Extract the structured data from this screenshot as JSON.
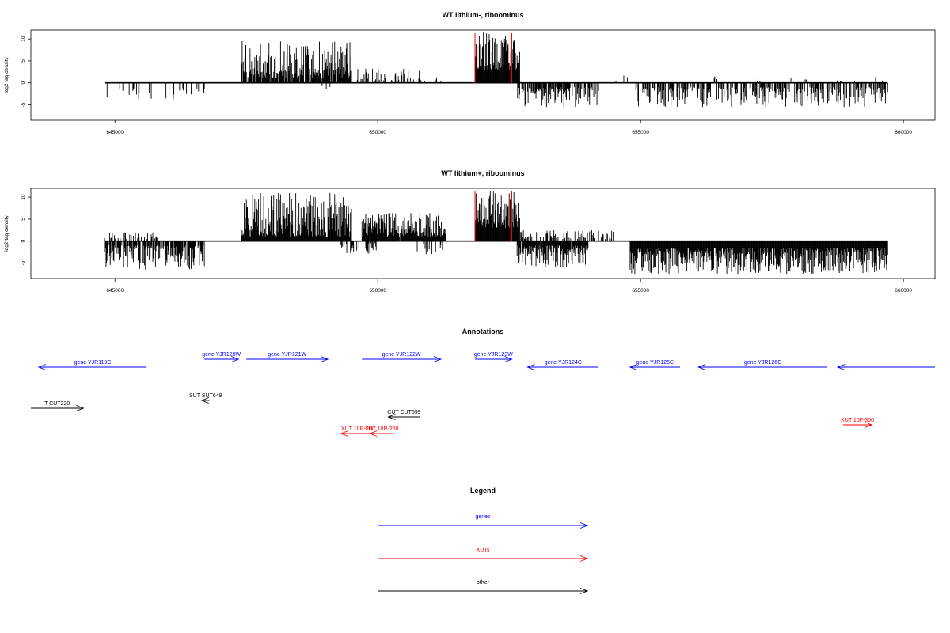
{
  "colors": {
    "genes": "#0000ff",
    "xuts": "#ff0000",
    "other": "#000000",
    "highlight": "#ff0000",
    "bar": "#000000"
  },
  "chart_data": [
    {
      "type": "bar",
      "title": "WT lithium-, riboominus",
      "ylabel": "log2 tag density",
      "xlim": [
        643400,
        660600
      ],
      "ylim": [
        -8.5,
        12
      ],
      "xticks": [
        645000,
        650000,
        655000,
        660000
      ],
      "xtick_labels": [
        "645000",
        "650000",
        "655000",
        "660000"
      ],
      "yticks": [
        -5,
        0,
        5,
        10
      ],
      "ytick_labels": [
        "-5",
        "0",
        "5",
        "10"
      ],
      "highlight_lines_x": [
        651850,
        652550
      ],
      "regions": [
        {
          "start": 644800,
          "end": 646700,
          "sign": -1,
          "min": 1,
          "max": 4.5,
          "density": 0.12,
          "seed": 3
        },
        {
          "start": 647400,
          "end": 649500,
          "sign": 1,
          "min": 1,
          "max": 9.5,
          "density": 0.9,
          "seed": 7
        },
        {
          "start": 648700,
          "end": 649300,
          "sign": -1,
          "min": 0.5,
          "max": 2,
          "density": 0.05,
          "seed": 11
        },
        {
          "start": 649600,
          "end": 650900,
          "sign": 1,
          "min": 0.5,
          "max": 3.5,
          "density": 0.35,
          "seed": 13
        },
        {
          "start": 651000,
          "end": 651200,
          "sign": 1,
          "min": 0.5,
          "max": 2,
          "density": 0.2,
          "seed": 17
        },
        {
          "start": 651850,
          "end": 652700,
          "sign": 1,
          "min": 3,
          "max": 11.5,
          "density": 1,
          "seed": 19
        },
        {
          "start": 652650,
          "end": 654200,
          "sign": -1,
          "min": 1,
          "max": 5.5,
          "density": 0.7,
          "seed": 23
        },
        {
          "start": 654250,
          "end": 654800,
          "sign": 1,
          "min": 0.5,
          "max": 3,
          "density": 0.05,
          "seed": 29
        },
        {
          "start": 654900,
          "end": 659700,
          "sign": -1,
          "min": 1,
          "max": 5.5,
          "density": 0.55,
          "seed": 31
        },
        {
          "start": 656400,
          "end": 659700,
          "sign": 1,
          "min": 0.3,
          "max": 1.5,
          "density": 0.05,
          "seed": 37
        }
      ]
    },
    {
      "type": "bar",
      "title": "WT lithium+, riboominus",
      "ylabel": "log2 tag density",
      "xlim": [
        643400,
        660600
      ],
      "ylim": [
        -8.5,
        12
      ],
      "xticks": [
        645000,
        650000,
        655000,
        660000
      ],
      "xtick_labels": [
        "645000",
        "650000",
        "655000",
        "660000"
      ],
      "yticks": [
        -5,
        0,
        5,
        10
      ],
      "ytick_labels": [
        "-5",
        "0",
        "5",
        "10"
      ],
      "highlight_lines_x": [
        651850,
        652550
      ],
      "regions": [
        {
          "start": 644800,
          "end": 646700,
          "sign": -1,
          "min": 1,
          "max": 6.5,
          "density": 0.75,
          "seed": 41
        },
        {
          "start": 644800,
          "end": 645800,
          "sign": 1,
          "min": 0.5,
          "max": 2,
          "density": 0.3,
          "seed": 43
        },
        {
          "start": 647400,
          "end": 649500,
          "sign": 1,
          "min": 1,
          "max": 11,
          "density": 1,
          "seed": 47
        },
        {
          "start": 649300,
          "end": 650000,
          "sign": -1,
          "min": 0.5,
          "max": 3,
          "density": 0.4,
          "seed": 53
        },
        {
          "start": 649700,
          "end": 651300,
          "sign": 1,
          "min": 1,
          "max": 6.5,
          "density": 0.95,
          "seed": 59
        },
        {
          "start": 650700,
          "end": 651300,
          "sign": -1,
          "min": 0.5,
          "max": 3,
          "density": 0.2,
          "seed": 61
        },
        {
          "start": 651850,
          "end": 652700,
          "sign": 1,
          "min": 3,
          "max": 11.5,
          "density": 1,
          "seed": 67
        },
        {
          "start": 652650,
          "end": 654000,
          "sign": -1,
          "min": 1,
          "max": 6,
          "density": 0.95,
          "seed": 71
        },
        {
          "start": 652700,
          "end": 654500,
          "sign": 1,
          "min": 0.5,
          "max": 2.5,
          "density": 0.3,
          "seed": 73
        },
        {
          "start": 654800,
          "end": 659700,
          "sign": -1,
          "min": 1.5,
          "max": 7.5,
          "density": 1,
          "seed": 79
        }
      ]
    }
  ],
  "annotations": {
    "title": "Annotations",
    "features": [
      {
        "label": "gene YJR119C",
        "type": "genes",
        "dir": "left",
        "start": 643550,
        "end": 645600,
        "row": 1
      },
      {
        "label": "gene YJR120W",
        "type": "genes",
        "dir": "right",
        "start": 646700,
        "end": 647350,
        "row": 0
      },
      {
        "label": "gene YJR121W",
        "type": "genes",
        "dir": "right",
        "start": 647500,
        "end": 649050,
        "row": 0
      },
      {
        "label": "gene YJR122W",
        "type": "genes",
        "dir": "right",
        "start": 649700,
        "end": 651200,
        "row": 0
      },
      {
        "label": "gene YJR123W",
        "type": "genes",
        "dir": "right",
        "start": 651850,
        "end": 652550,
        "row": 0
      },
      {
        "label": "gene YJR124C",
        "type": "genes",
        "dir": "left",
        "start": 652850,
        "end": 654200,
        "row": 1
      },
      {
        "label": "gene YJR125C",
        "type": "genes",
        "dir": "left",
        "start": 654800,
        "end": 655750,
        "row": 1
      },
      {
        "label": "gene YJR126C",
        "type": "genes",
        "dir": "left",
        "start": 656100,
        "end": 658550,
        "row": 1
      },
      {
        "label": "",
        "type": "genes",
        "dir": "left",
        "start": 658750,
        "end": 660600,
        "row": 1
      },
      {
        "label": "SUT SUT649",
        "type": "other",
        "dir": "left",
        "start": 646650,
        "end": 646800,
        "row": 2
      },
      {
        "label": "T CUT220",
        "type": "other",
        "dir": "right",
        "start": 643400,
        "end": 644400,
        "row": 3
      },
      {
        "label": "CUT CUT699",
        "type": "other",
        "dir": "left",
        "start": 650200,
        "end": 650800,
        "row": 4
      },
      {
        "label": "XUT 10R-260",
        "type": "xuts",
        "dir": "left",
        "start": 649300,
        "end": 649950,
        "row": 5
      },
      {
        "label": "XUT 10R-258",
        "type": "xuts",
        "dir": "left",
        "start": 649850,
        "end": 650300,
        "row": 5
      },
      {
        "label": "XUT 10F-300",
        "type": "xuts",
        "dir": "right",
        "start": 658850,
        "end": 659400,
        "row": 6
      }
    ]
  },
  "legend": {
    "title": "Legend",
    "items": [
      {
        "label": "genes",
        "type": "genes"
      },
      {
        "label": "XUTs",
        "type": "xuts"
      },
      {
        "label": "other",
        "type": "other"
      }
    ]
  }
}
